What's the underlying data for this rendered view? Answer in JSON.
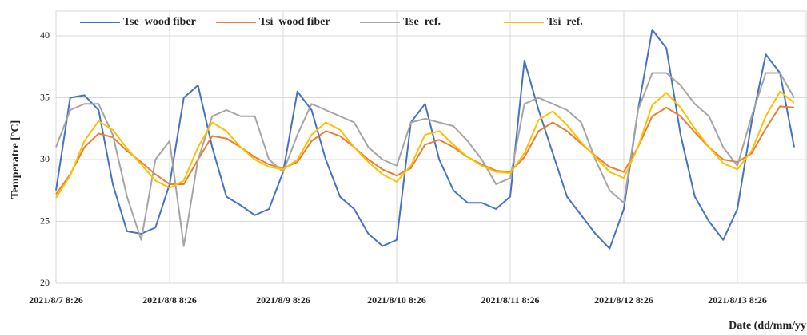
{
  "chart_data": {
    "type": "line",
    "y_label": "Temperatre [°C]",
    "x_label": "Date (dd/mm/yy",
    "categories": [
      "2021/8/7 8:26",
      null,
      null,
      null,
      null,
      null,
      null,
      null,
      "2021/8/8 8:26",
      null,
      null,
      null,
      null,
      null,
      null,
      null,
      "2021/8/9 8:26",
      null,
      null,
      null,
      null,
      null,
      null,
      null,
      "2021/8/10 8:26",
      null,
      null,
      null,
      null,
      null,
      null,
      null,
      "2021/8/11 8:26",
      null,
      null,
      null,
      null,
      null,
      null,
      null,
      "2021/8/12 8:26",
      null,
      null,
      null,
      null,
      null,
      null,
      null,
      "2021/8/13 8:26",
      null,
      null,
      null,
      null
    ],
    "series": [
      {
        "name": "Tse_wood fiber",
        "color": "#4472c4",
        "values": [
          27.5,
          35,
          35.2,
          34,
          28,
          24.2,
          24,
          24.5,
          28,
          35,
          36,
          31,
          27,
          26.3,
          25.5,
          26,
          29,
          35.5,
          34,
          30,
          27,
          26,
          24,
          23,
          23.5,
          33,
          34.5,
          30,
          27.5,
          26.5,
          26.5,
          26,
          27,
          38,
          34,
          30.5,
          27,
          25.5,
          24,
          22.8,
          26,
          34,
          40.5,
          39,
          32,
          27,
          25,
          23.5,
          26,
          33,
          38.5,
          37,
          31
        ]
      },
      {
        "name": "Tsi_wood fiber",
        "color": "#ed7d31",
        "values": [
          27.2,
          28.8,
          31,
          32.1,
          31.8,
          30.7,
          29.8,
          28.8,
          28,
          28,
          30,
          31.9,
          31.7,
          31,
          30.2,
          29.6,
          29.3,
          29.8,
          31.5,
          32.3,
          31.9,
          31,
          30,
          29.2,
          28.7,
          29.3,
          31.2,
          31.6,
          31,
          30.2,
          29.6,
          29.1,
          29,
          30.2,
          32.3,
          33,
          32.3,
          31.3,
          30.3,
          29.4,
          29,
          31,
          33.5,
          34.2,
          33.5,
          32.2,
          31,
          30,
          29.8,
          30.5,
          32.5,
          34.3,
          34.2
        ]
      },
      {
        "name": "Tse_ref.",
        "color": "#a5a5a5",
        "values": [
          31,
          34,
          34.5,
          34.5,
          32,
          27,
          23.5,
          30,
          31.5,
          23,
          30,
          33.5,
          34,
          33.5,
          33.5,
          30,
          29,
          32,
          34.5,
          34,
          33.5,
          33,
          31,
          30,
          29.5,
          33,
          33.3,
          33,
          32.7,
          31.5,
          30,
          28,
          28.5,
          34.5,
          35,
          34.5,
          34,
          33,
          30,
          27.5,
          26.5,
          34,
          37,
          37,
          36,
          34.5,
          33.5,
          31,
          29.5,
          33.5,
          37,
          37,
          35
        ]
      },
      {
        "name": "Tsi_ref.",
        "color": "#ffc000",
        "values": [
          26.9,
          28.7,
          31.5,
          33.1,
          32.4,
          30.9,
          29.6,
          28.3,
          27.7,
          28.3,
          31,
          33,
          32.3,
          31,
          30,
          29.4,
          29.2,
          30,
          32,
          33,
          32.4,
          31,
          29.8,
          28.8,
          28.2,
          29.5,
          32,
          32.3,
          31.2,
          30.2,
          29.5,
          29,
          28.9,
          30.5,
          33.2,
          33.9,
          32.8,
          31.4,
          30.2,
          29,
          28.5,
          31,
          34.4,
          35.4,
          34.2,
          32.5,
          31,
          29.7,
          29.2,
          30.7,
          33.5,
          35.5,
          34.6
        ]
      }
    ],
    "ylim": [
      20,
      42
    ],
    "yticks": [
      20,
      25,
      30,
      35,
      40
    ],
    "grid": true
  }
}
